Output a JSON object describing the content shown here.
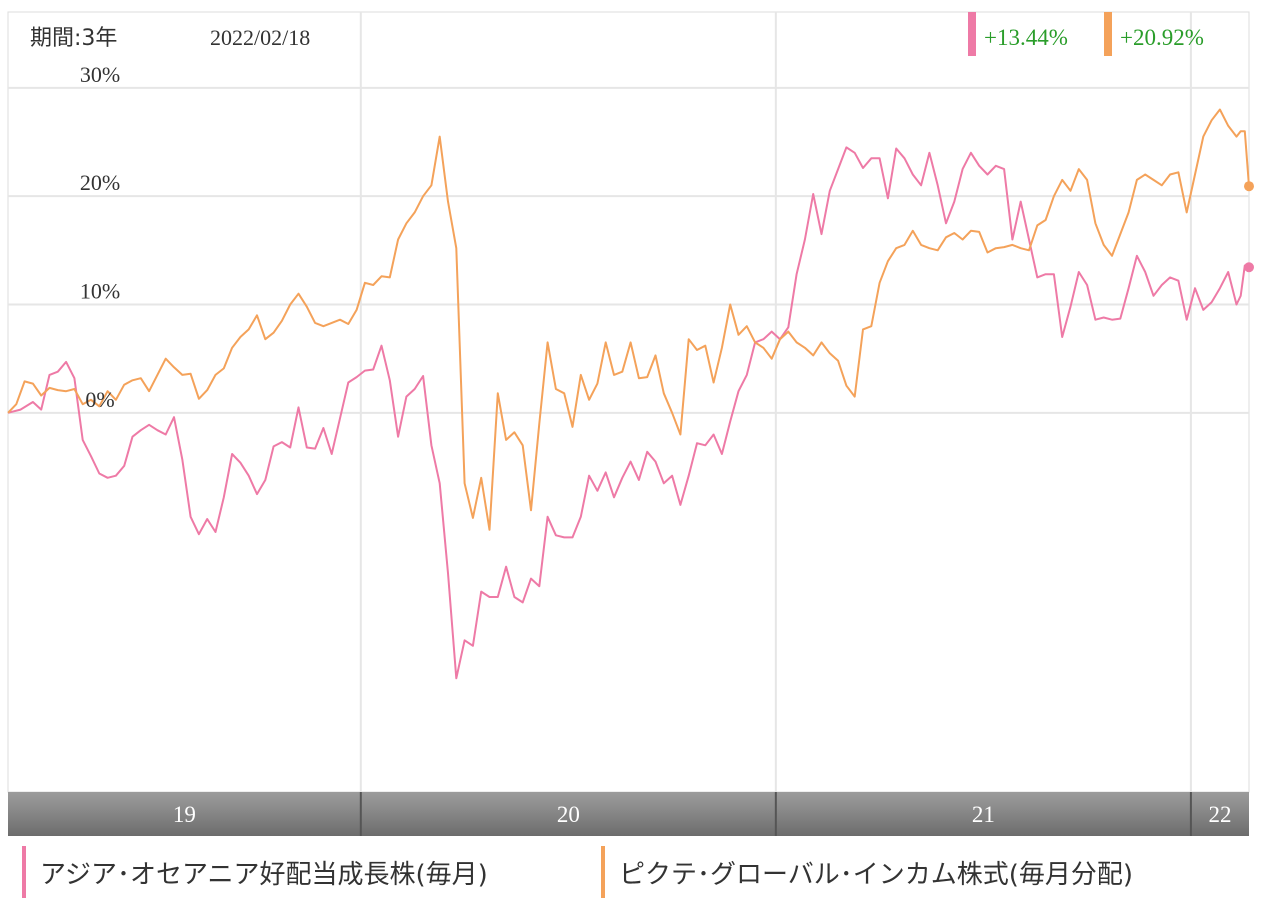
{
  "chart_data": {
    "type": "line",
    "period_label": "期間:3年",
    "date_label": "2022/02/18",
    "y_ticks": [
      "30%",
      "20%",
      "10%",
      "0%"
    ],
    "y_tick_values": [
      30,
      20,
      10,
      0
    ],
    "ylim": [
      -35,
      37
    ],
    "x_years": [
      "19",
      "20",
      "21",
      "22"
    ],
    "x_year_boundaries": [
      2020.0,
      2021.0,
      2022.0
    ],
    "xlim": [
      2019.15,
      2022.14
    ],
    "grid": true,
    "legend_position": "bottom",
    "series": [
      {
        "name": "アジア･オセアニア好配当成長株(毎月)",
        "color": "#ee7aa6",
        "last_change": "+13.44%",
        "points": [
          [
            2019.15,
            0
          ],
          [
            2019.18,
            0.3
          ],
          [
            2019.21,
            1
          ],
          [
            2019.23,
            0.3
          ],
          [
            2019.25,
            3.5
          ],
          [
            2019.27,
            3.8
          ],
          [
            2019.29,
            4.7
          ],
          [
            2019.31,
            3.2
          ],
          [
            2019.33,
            -2.5
          ],
          [
            2019.35,
            -4
          ],
          [
            2019.37,
            -5.6
          ],
          [
            2019.39,
            -6
          ],
          [
            2019.41,
            -5.8
          ],
          [
            2019.43,
            -4.9
          ],
          [
            2019.45,
            -2.2
          ],
          [
            2019.47,
            -1.6
          ],
          [
            2019.49,
            -1.1
          ],
          [
            2019.51,
            -1.6
          ],
          [
            2019.53,
            -2
          ],
          [
            2019.55,
            -0.4
          ],
          [
            2019.57,
            -4.3
          ],
          [
            2019.59,
            -9.6
          ],
          [
            2019.61,
            -11.2
          ],
          [
            2019.63,
            -9.8
          ],
          [
            2019.65,
            -11
          ],
          [
            2019.67,
            -7.8
          ],
          [
            2019.69,
            -3.8
          ],
          [
            2019.71,
            -4.6
          ],
          [
            2019.73,
            -5.8
          ],
          [
            2019.75,
            -7.5
          ],
          [
            2019.77,
            -6.2
          ],
          [
            2019.79,
            -3.1
          ],
          [
            2019.81,
            -2.7
          ],
          [
            2019.83,
            -3.2
          ],
          [
            2019.85,
            0.5
          ],
          [
            2019.87,
            -3.2
          ],
          [
            2019.89,
            -3.3
          ],
          [
            2019.91,
            -1.4
          ],
          [
            2019.93,
            -3.8
          ],
          [
            2019.95,
            -0.5
          ],
          [
            2019.97,
            2.8
          ],
          [
            2019.99,
            3.3
          ],
          [
            2020.01,
            3.9
          ],
          [
            2020.03,
            4
          ],
          [
            2020.05,
            6.2
          ],
          [
            2020.07,
            3
          ],
          [
            2020.09,
            -2.2
          ],
          [
            2020.11,
            1.5
          ],
          [
            2020.13,
            2.2
          ],
          [
            2020.15,
            3.4
          ],
          [
            2020.17,
            -3
          ],
          [
            2020.19,
            -6.5
          ],
          [
            2020.21,
            -14.8
          ],
          [
            2020.23,
            -24.5
          ],
          [
            2020.25,
            -21
          ],
          [
            2020.27,
            -21.5
          ],
          [
            2020.29,
            -16.5
          ],
          [
            2020.31,
            -17
          ],
          [
            2020.33,
            -17
          ],
          [
            2020.35,
            -14.2
          ],
          [
            2020.37,
            -17
          ],
          [
            2020.39,
            -17.5
          ],
          [
            2020.41,
            -15.3
          ],
          [
            2020.43,
            -16
          ],
          [
            2020.45,
            -9.6
          ],
          [
            2020.47,
            -11.3
          ],
          [
            2020.49,
            -11.5
          ],
          [
            2020.51,
            -11.5
          ],
          [
            2020.53,
            -9.6
          ],
          [
            2020.55,
            -5.8
          ],
          [
            2020.57,
            -7.2
          ],
          [
            2020.59,
            -5.5
          ],
          [
            2020.61,
            -7.8
          ],
          [
            2020.63,
            -6
          ],
          [
            2020.65,
            -4.5
          ],
          [
            2020.67,
            -6.2
          ],
          [
            2020.69,
            -3.6
          ],
          [
            2020.71,
            -4.5
          ],
          [
            2020.73,
            -6.5
          ],
          [
            2020.75,
            -5.8
          ],
          [
            2020.77,
            -8.5
          ],
          [
            2020.79,
            -5.8
          ],
          [
            2020.81,
            -2.8
          ],
          [
            2020.83,
            -3
          ],
          [
            2020.85,
            -2
          ],
          [
            2020.87,
            -3.8
          ],
          [
            2020.89,
            -0.8
          ],
          [
            2020.91,
            2
          ],
          [
            2020.93,
            3.5
          ],
          [
            2020.95,
            6.5
          ],
          [
            2020.97,
            6.8
          ],
          [
            2020.99,
            7.5
          ],
          [
            2021.01,
            6.8
          ],
          [
            2021.03,
            7.9
          ],
          [
            2021.05,
            12.8
          ],
          [
            2021.07,
            16
          ],
          [
            2021.09,
            20.2
          ],
          [
            2021.11,
            16.5
          ],
          [
            2021.13,
            20.5
          ],
          [
            2021.15,
            22.5
          ],
          [
            2021.17,
            24.5
          ],
          [
            2021.19,
            24
          ],
          [
            2021.21,
            22.6
          ],
          [
            2021.23,
            23.5
          ],
          [
            2021.25,
            23.5
          ],
          [
            2021.27,
            19.8
          ],
          [
            2021.29,
            24.4
          ],
          [
            2021.31,
            23.5
          ],
          [
            2021.33,
            22
          ],
          [
            2021.35,
            21
          ],
          [
            2021.37,
            24
          ],
          [
            2021.39,
            21
          ],
          [
            2021.41,
            17.5
          ],
          [
            2021.43,
            19.5
          ],
          [
            2021.45,
            22.5
          ],
          [
            2021.47,
            24
          ],
          [
            2021.49,
            22.8
          ],
          [
            2021.51,
            22
          ],
          [
            2021.53,
            22.8
          ],
          [
            2021.55,
            22.5
          ],
          [
            2021.57,
            16
          ],
          [
            2021.59,
            19.5
          ],
          [
            2021.61,
            16
          ],
          [
            2021.63,
            12.5
          ],
          [
            2021.65,
            12.8
          ],
          [
            2021.67,
            12.8
          ],
          [
            2021.69,
            7
          ],
          [
            2021.71,
            9.8
          ],
          [
            2021.73,
            13
          ],
          [
            2021.75,
            11.8
          ],
          [
            2021.77,
            8.6
          ],
          [
            2021.79,
            8.8
          ],
          [
            2021.81,
            8.6
          ],
          [
            2021.83,
            8.7
          ],
          [
            2021.85,
            11.5
          ],
          [
            2021.87,
            14.5
          ],
          [
            2021.89,
            13
          ],
          [
            2021.91,
            10.8
          ],
          [
            2021.93,
            11.8
          ],
          [
            2021.95,
            12.5
          ],
          [
            2021.97,
            12.2
          ],
          [
            2021.99,
            8.6
          ],
          [
            2022.01,
            11.5
          ],
          [
            2022.03,
            9.5
          ],
          [
            2022.05,
            10.2
          ],
          [
            2022.07,
            11.5
          ],
          [
            2022.09,
            13
          ],
          [
            2022.11,
            10
          ],
          [
            2022.12,
            10.8
          ],
          [
            2022.13,
            13.6
          ],
          [
            2022.14,
            13.44
          ]
        ]
      },
      {
        "name": "ピクテ･グローバル･インカム株式(毎月分配)",
        "color": "#f4a25a",
        "last_change": "+20.92%",
        "points": [
          [
            2019.15,
            0
          ],
          [
            2019.17,
            0.8
          ],
          [
            2019.19,
            2.9
          ],
          [
            2019.21,
            2.7
          ],
          [
            2019.23,
            1.6
          ],
          [
            2019.25,
            2.3
          ],
          [
            2019.27,
            2.1
          ],
          [
            2019.29,
            2
          ],
          [
            2019.31,
            2.2
          ],
          [
            2019.33,
            0.8
          ],
          [
            2019.35,
            1.2
          ],
          [
            2019.37,
            0.6
          ],
          [
            2019.39,
            2
          ],
          [
            2019.41,
            1.2
          ],
          [
            2019.43,
            2.6
          ],
          [
            2019.45,
            3
          ],
          [
            2019.47,
            3.2
          ],
          [
            2019.49,
            2
          ],
          [
            2019.51,
            3.5
          ],
          [
            2019.53,
            5
          ],
          [
            2019.55,
            4.2
          ],
          [
            2019.57,
            3.5
          ],
          [
            2019.59,
            3.6
          ],
          [
            2019.61,
            1.3
          ],
          [
            2019.63,
            2.1
          ],
          [
            2019.65,
            3.5
          ],
          [
            2019.67,
            4.1
          ],
          [
            2019.69,
            6
          ],
          [
            2019.71,
            7
          ],
          [
            2019.73,
            7.7
          ],
          [
            2019.75,
            9
          ],
          [
            2019.77,
            6.8
          ],
          [
            2019.79,
            7.4
          ],
          [
            2019.81,
            8.5
          ],
          [
            2019.83,
            10
          ],
          [
            2019.85,
            11
          ],
          [
            2019.87,
            9.8
          ],
          [
            2019.89,
            8.3
          ],
          [
            2019.91,
            8
          ],
          [
            2019.93,
            8.3
          ],
          [
            2019.95,
            8.6
          ],
          [
            2019.97,
            8.2
          ],
          [
            2019.99,
            9.5
          ],
          [
            2020.01,
            12
          ],
          [
            2020.03,
            11.8
          ],
          [
            2020.05,
            12.6
          ],
          [
            2020.07,
            12.5
          ],
          [
            2020.09,
            16
          ],
          [
            2020.11,
            17.5
          ],
          [
            2020.13,
            18.5
          ],
          [
            2020.15,
            20
          ],
          [
            2020.17,
            21
          ],
          [
            2020.19,
            25.5
          ],
          [
            2020.21,
            19.5
          ],
          [
            2020.23,
            15.2
          ],
          [
            2020.25,
            -6.5
          ],
          [
            2020.27,
            -9.7
          ],
          [
            2020.29,
            -6
          ],
          [
            2020.31,
            -10.8
          ],
          [
            2020.33,
            1.8
          ],
          [
            2020.35,
            -2.5
          ],
          [
            2020.37,
            -1.8
          ],
          [
            2020.39,
            -3
          ],
          [
            2020.41,
            -9
          ],
          [
            2020.43,
            -1
          ],
          [
            2020.45,
            6.5
          ],
          [
            2020.47,
            2.2
          ],
          [
            2020.49,
            1.8
          ],
          [
            2020.51,
            -1.3
          ],
          [
            2020.53,
            3.5
          ],
          [
            2020.55,
            1.2
          ],
          [
            2020.57,
            2.7
          ],
          [
            2020.59,
            6.5
          ],
          [
            2020.61,
            3.5
          ],
          [
            2020.63,
            3.8
          ],
          [
            2020.65,
            6.5
          ],
          [
            2020.67,
            3.2
          ],
          [
            2020.69,
            3.3
          ],
          [
            2020.71,
            5.3
          ],
          [
            2020.73,
            1.8
          ],
          [
            2020.75,
            0
          ],
          [
            2020.77,
            -2
          ],
          [
            2020.79,
            6.8
          ],
          [
            2020.81,
            5.8
          ],
          [
            2020.83,
            6.2
          ],
          [
            2020.85,
            2.8
          ],
          [
            2020.87,
            6
          ],
          [
            2020.89,
            10
          ],
          [
            2020.91,
            7.2
          ],
          [
            2020.93,
            8
          ],
          [
            2020.95,
            6.5
          ],
          [
            2020.97,
            6
          ],
          [
            2020.99,
            5
          ],
          [
            2021.01,
            6.8
          ],
          [
            2021.03,
            7.5
          ],
          [
            2021.05,
            6.5
          ],
          [
            2021.07,
            6
          ],
          [
            2021.09,
            5.3
          ],
          [
            2021.11,
            6.5
          ],
          [
            2021.13,
            5.5
          ],
          [
            2021.15,
            4.8
          ],
          [
            2021.17,
            2.5
          ],
          [
            2021.19,
            1.5
          ],
          [
            2021.21,
            7.7
          ],
          [
            2021.23,
            8
          ],
          [
            2021.25,
            12
          ],
          [
            2021.27,
            14
          ],
          [
            2021.29,
            15.2
          ],
          [
            2021.31,
            15.5
          ],
          [
            2021.33,
            16.8
          ],
          [
            2021.35,
            15.5
          ],
          [
            2021.37,
            15.2
          ],
          [
            2021.39,
            15
          ],
          [
            2021.41,
            16.2
          ],
          [
            2021.43,
            16.6
          ],
          [
            2021.45,
            16
          ],
          [
            2021.47,
            16.8
          ],
          [
            2021.49,
            16.7
          ],
          [
            2021.51,
            14.8
          ],
          [
            2021.53,
            15.2
          ],
          [
            2021.55,
            15.3
          ],
          [
            2021.57,
            15.5
          ],
          [
            2021.59,
            15.2
          ],
          [
            2021.61,
            15
          ],
          [
            2021.63,
            17.3
          ],
          [
            2021.65,
            17.8
          ],
          [
            2021.67,
            20
          ],
          [
            2021.69,
            21.5
          ],
          [
            2021.71,
            20.5
          ],
          [
            2021.73,
            22.5
          ],
          [
            2021.75,
            21.5
          ],
          [
            2021.77,
            17.5
          ],
          [
            2021.79,
            15.5
          ],
          [
            2021.81,
            14.5
          ],
          [
            2021.83,
            16.5
          ],
          [
            2021.85,
            18.5
          ],
          [
            2021.87,
            21.5
          ],
          [
            2021.89,
            22
          ],
          [
            2021.91,
            21.5
          ],
          [
            2021.93,
            21
          ],
          [
            2021.95,
            22
          ],
          [
            2021.97,
            22.2
          ],
          [
            2021.99,
            18.5
          ],
          [
            2022.01,
            22
          ],
          [
            2022.03,
            25.5
          ],
          [
            2022.05,
            27
          ],
          [
            2022.07,
            28
          ],
          [
            2022.09,
            26.5
          ],
          [
            2022.1,
            26
          ],
          [
            2022.11,
            25.5
          ],
          [
            2022.12,
            26
          ],
          [
            2022.13,
            26
          ],
          [
            2022.14,
            20.92
          ]
        ]
      }
    ]
  }
}
